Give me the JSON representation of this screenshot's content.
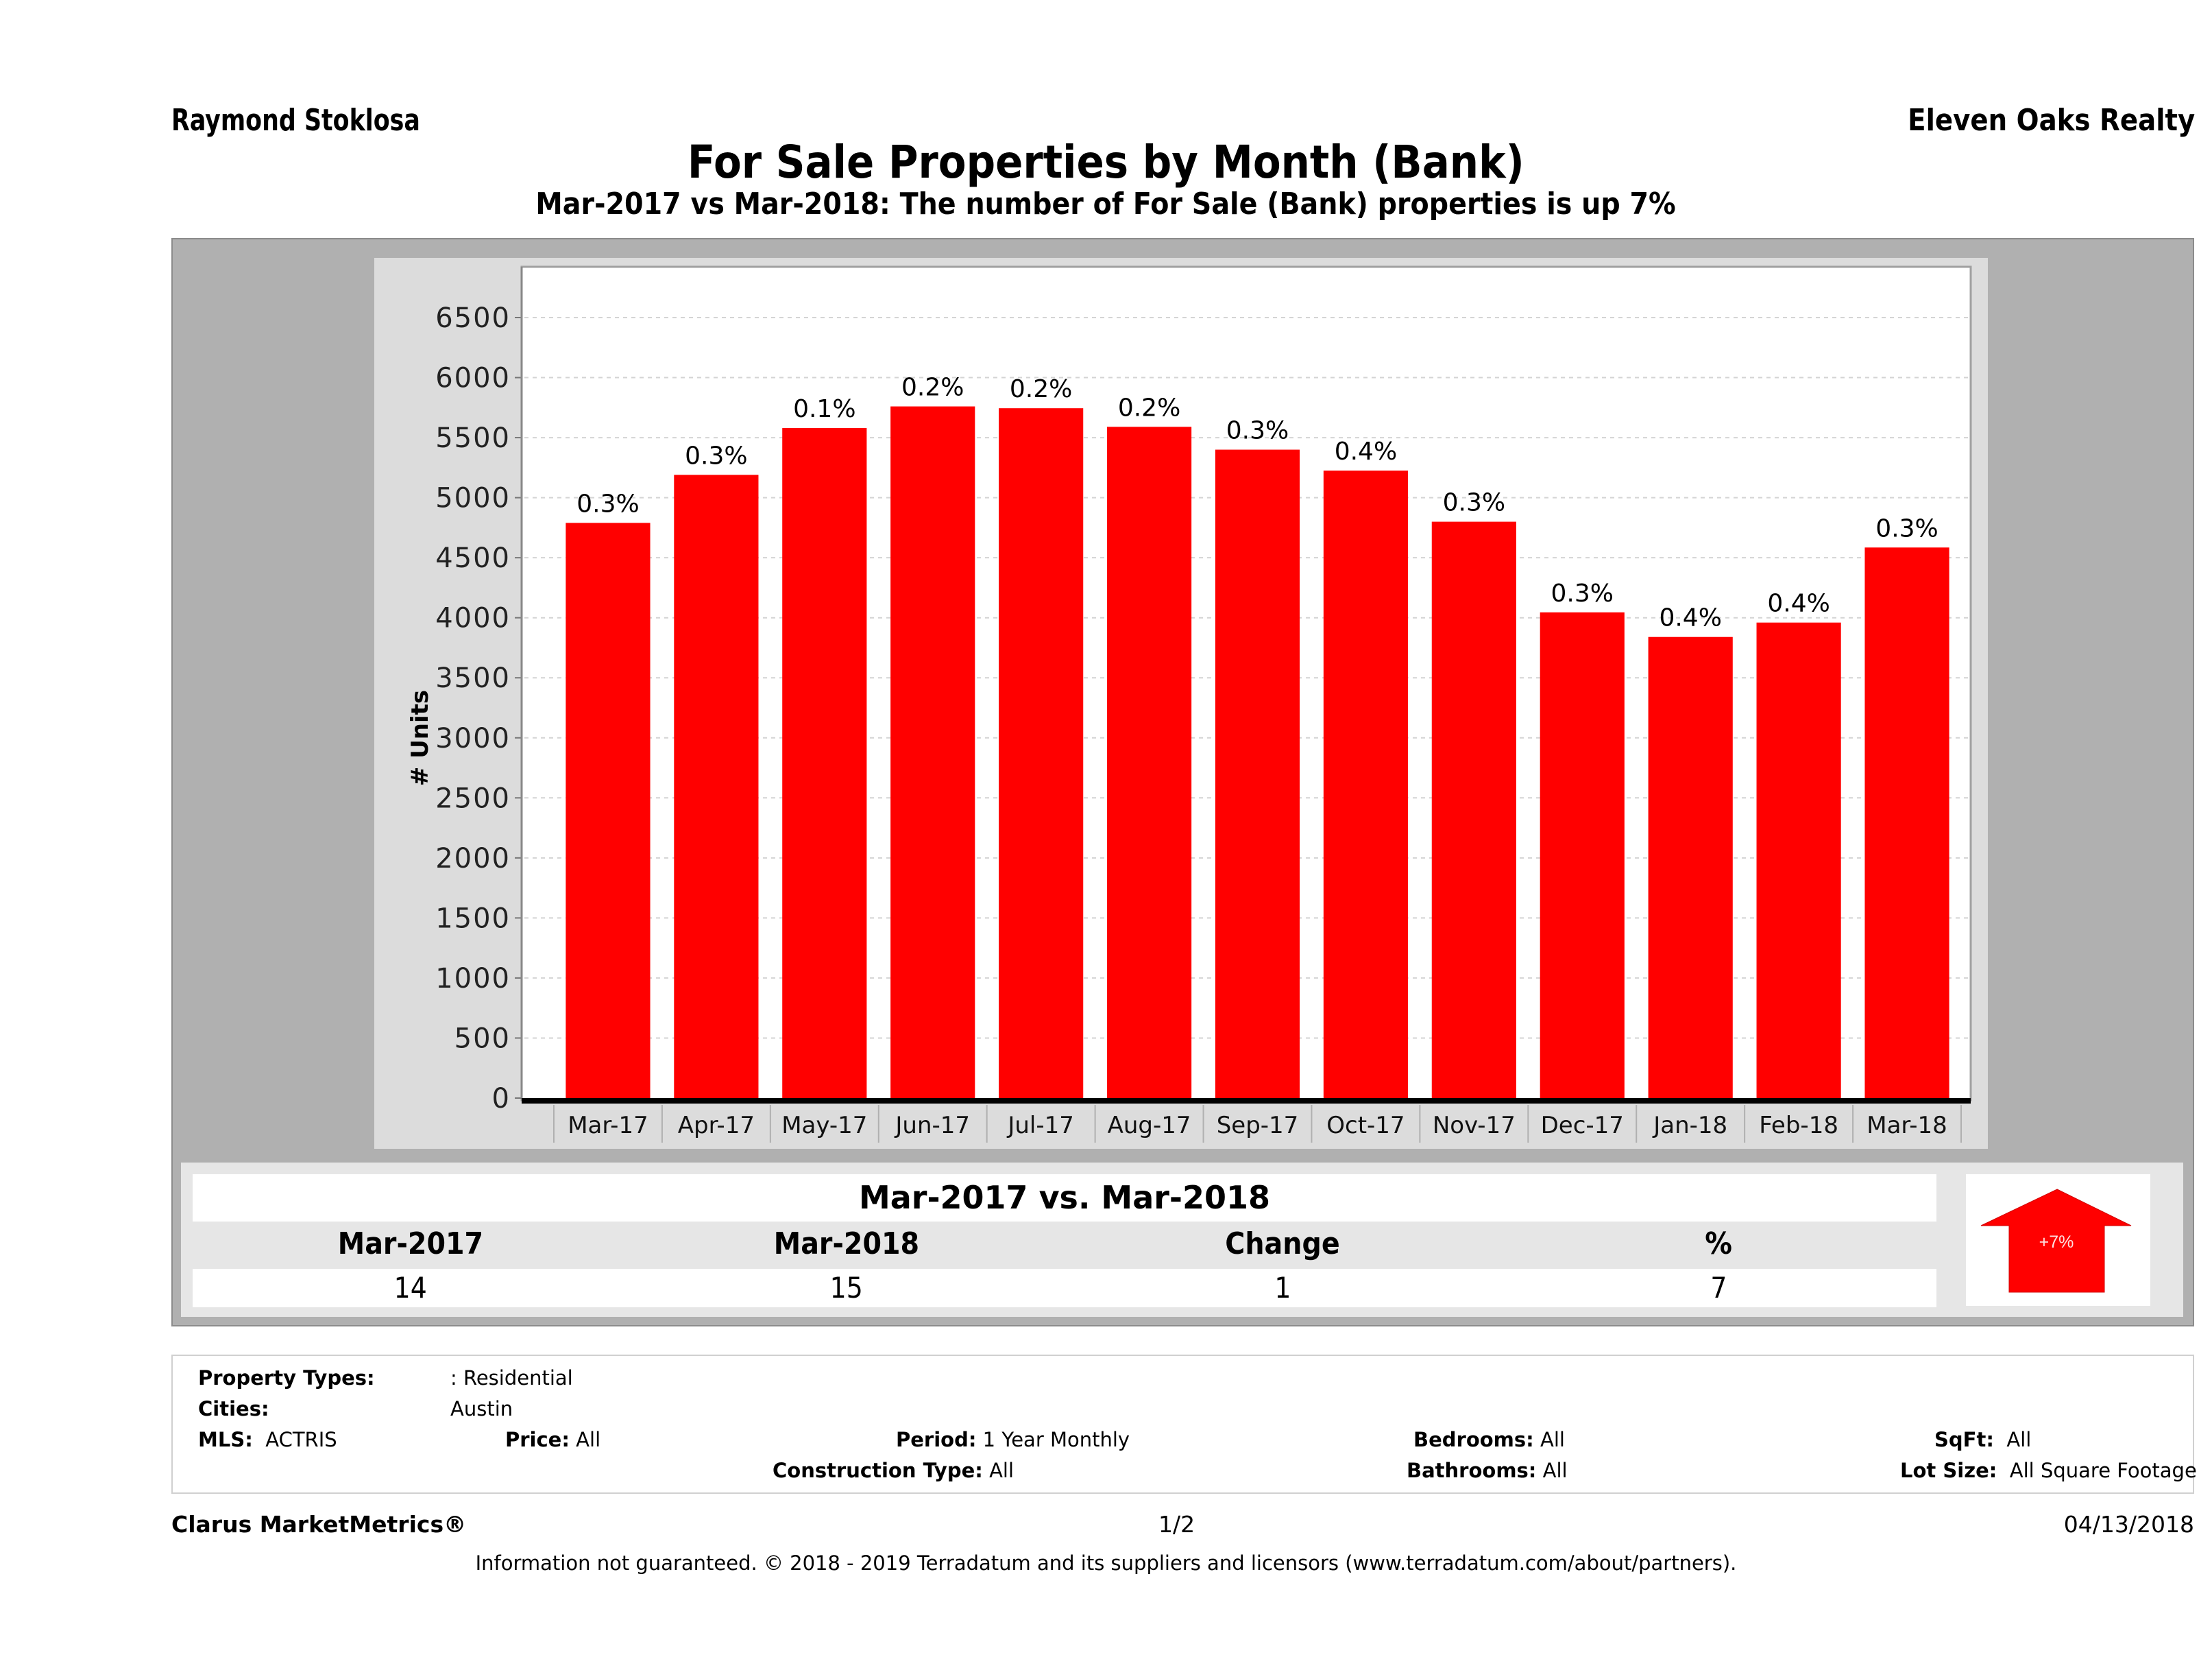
{
  "header": {
    "agent_name": "Raymond Stoklosa",
    "company": "Eleven Oaks Realty",
    "title": "For Sale Properties by Month (Bank)",
    "subtitle": "Mar-2017 vs Mar-2018: The number of For Sale (Bank)  properties is up 7%"
  },
  "chart_data": {
    "type": "bar",
    "title": "For Sale Properties by Month (Bank)",
    "xlabel": "",
    "ylabel": "# Units",
    "ylim": [
      0,
      6500
    ],
    "yticks": [
      0,
      500,
      1000,
      1500,
      2000,
      2500,
      3000,
      3500,
      4000,
      4500,
      5000,
      5500,
      6000,
      6500
    ],
    "grid": true,
    "bar_color": "#ff0000",
    "categories": [
      "Mar-17",
      "Apr-17",
      "May-17",
      "Jun-17",
      "Jul-17",
      "Aug-17",
      "Sep-17",
      "Oct-17",
      "Nov-17",
      "Dec-17",
      "Jan-18",
      "Feb-18",
      "Mar-18"
    ],
    "values": [
      4790,
      5190,
      5580,
      5760,
      5745,
      5590,
      5400,
      5225,
      4800,
      4045,
      3840,
      3960,
      4585
    ],
    "data_labels": [
      "0.3%",
      "0.3%",
      "0.1%",
      "0.2%",
      "0.2%",
      "0.2%",
      "0.3%",
      "0.4%",
      "0.3%",
      "0.3%",
      "0.4%",
      "0.4%",
      "0.3%"
    ]
  },
  "summary": {
    "title": "Mar-2017 vs. Mar-2018",
    "headers": [
      "Mar-2017",
      "Mar-2018",
      "Change",
      "%"
    ],
    "values": [
      "14",
      "15",
      "1",
      "7"
    ],
    "arrow": {
      "direction": "up",
      "label": "+7%",
      "color": "#ff0000"
    }
  },
  "criteria": {
    "property_types_label": "Property Types:",
    "property_types_value": ": Residential",
    "cities_label": "Cities:",
    "cities_value": "Austin",
    "mls_label": "MLS:",
    "mls_value": "ACTRIS",
    "price_label": "Price:",
    "price_value": "All",
    "period_label": "Period:",
    "period_value": "1 Year Monthly",
    "construction_label": "Construction Type:",
    "construction_value": "All",
    "bedrooms_label": "Bedrooms:",
    "bedrooms_value": "All",
    "bathrooms_label": "Bathrooms:",
    "bathrooms_value": "All",
    "sqft_label": "SqFt:",
    "sqft_value": "All",
    "lot_label": "Lot Size:",
    "lot_value": "All Square Footage"
  },
  "footer": {
    "brand": "Clarus MarketMetrics®",
    "page": "1/2",
    "date": "04/13/2018",
    "disclaimer": "Information not guaranteed. © 2018 - 2019 Terradatum and its suppliers and licensors (www.terradatum.com/about/partners)."
  }
}
